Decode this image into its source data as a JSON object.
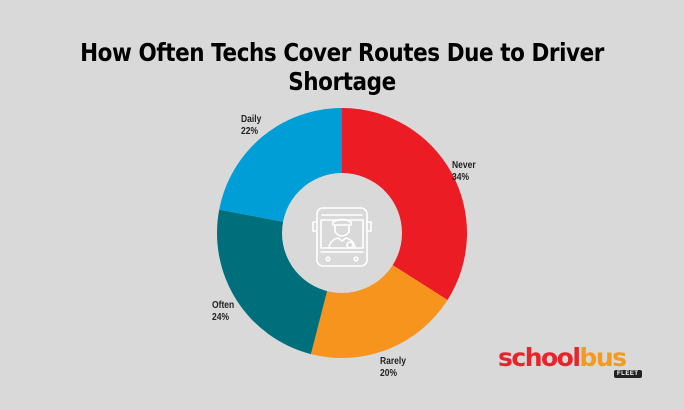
{
  "title": "How Often Techs Cover Routes Due to Driver Shortage",
  "chart_data": {
    "type": "pie",
    "subtype": "donut",
    "title": "How Often Techs Cover Routes Due to Driver Shortage",
    "categories": [
      "Never",
      "Rarely",
      "Often",
      "Daily"
    ],
    "values": [
      34,
      20,
      24,
      22
    ],
    "unit": "%",
    "colors": [
      "#ec1c24",
      "#f7941d",
      "#006f7c",
      "#009ed6"
    ],
    "start_angle": "12 o'clock, clockwise",
    "center_icon": "bus-driver-icon",
    "labels": [
      {
        "name": "Never",
        "value": "34%"
      },
      {
        "name": "Rarely",
        "value": "20%"
      },
      {
        "name": "Often",
        "value": "24%"
      },
      {
        "name": "Daily",
        "value": "22%"
      }
    ]
  },
  "logo": {
    "part1": "school",
    "part2": "bus",
    "badge": "FLEET",
    "colors": {
      "school": "#e8232a",
      "bus": "#f39a1f"
    }
  }
}
